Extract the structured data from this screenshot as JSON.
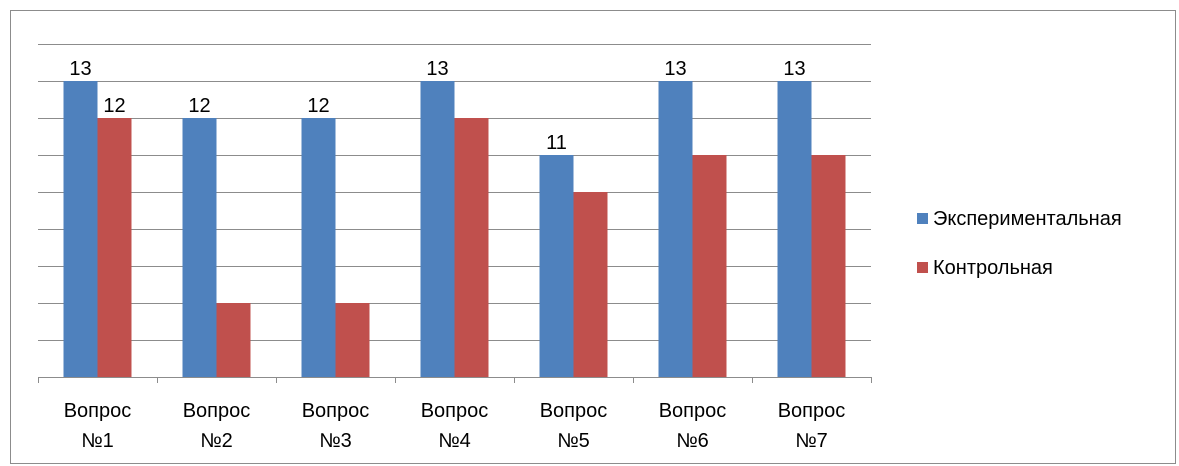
{
  "chart_data": {
    "type": "bar",
    "title": "",
    "xlabel": "",
    "ylabel": "",
    "categories": [
      [
        "Вопрос",
        "№1"
      ],
      [
        "Вопрос",
        "№2"
      ],
      [
        "Вопрос",
        "№3"
      ],
      [
        "Вопрос",
        "№4"
      ],
      [
        "Вопрос",
        "№5"
      ],
      [
        "Вопрос",
        "№6"
      ],
      [
        "Вопрос",
        "№7"
      ]
    ],
    "series": [
      {
        "name": "Экспериментальная",
        "color": "#4f81bd",
        "values": [
          13,
          12,
          12,
          13,
          11,
          13,
          13
        ],
        "show_labels": true
      },
      {
        "name": "Контрольная",
        "color": "#c0504d",
        "values": [
          12,
          7,
          7,
          12,
          10,
          11,
          11
        ],
        "show_labels_for": [
          0
        ]
      }
    ],
    "ylim": [
      5,
      14
    ],
    "y_axis_visible": false,
    "grid": true,
    "legend_position": "right"
  }
}
